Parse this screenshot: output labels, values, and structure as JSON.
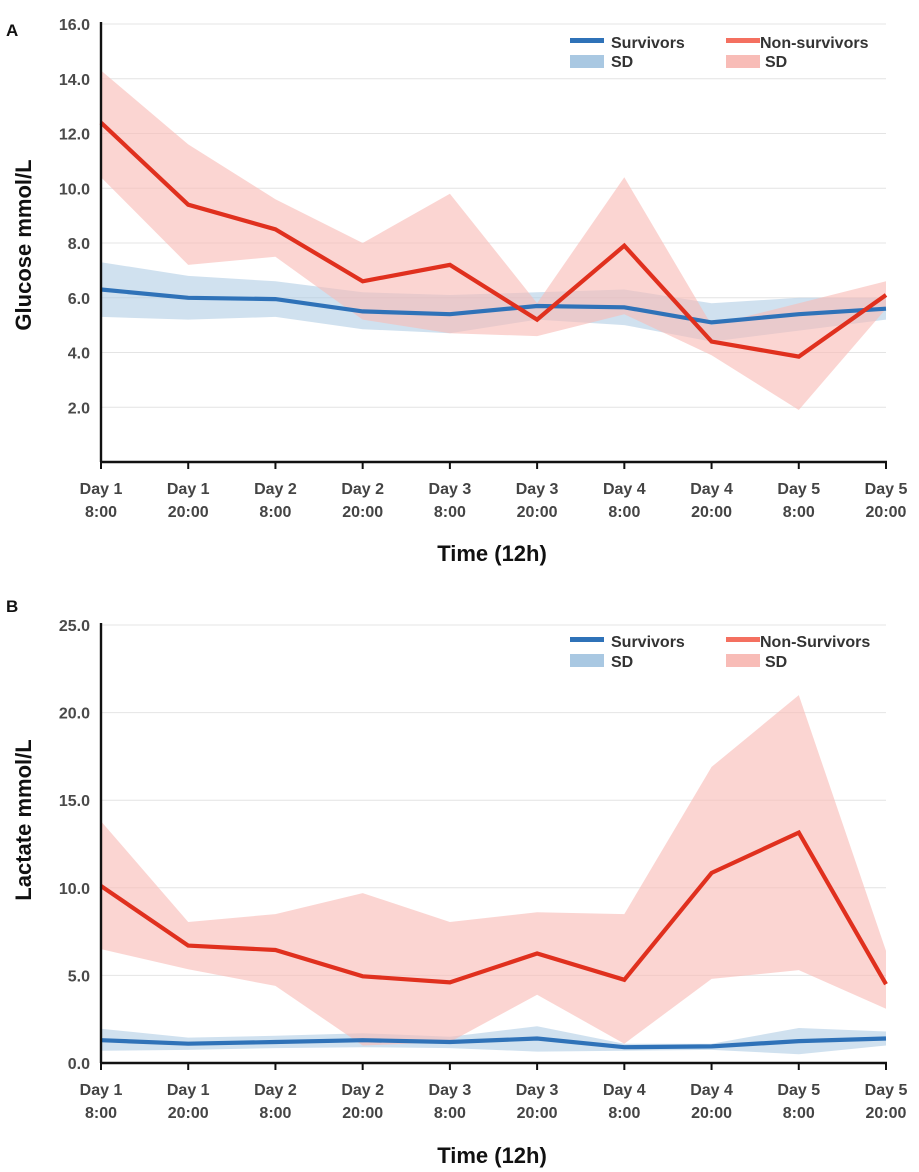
{
  "chart_data": [
    {
      "panel": "A",
      "type": "line",
      "ylabel": "Glucose mmol/L",
      "xlabel": "Time (12h)",
      "ylim": [
        0,
        16
      ],
      "yticks": [
        "2.0",
        "4.0",
        "6.0",
        "8.0",
        "10.0",
        "12.0",
        "14.0",
        "16.0"
      ],
      "ytick_values": [
        2,
        4,
        6,
        8,
        10,
        12,
        14,
        16
      ],
      "categories": [
        [
          "Day 1",
          "8:00"
        ],
        [
          "Day 1",
          "20:00"
        ],
        [
          "Day 2",
          "8:00"
        ],
        [
          "Day 2",
          "20:00"
        ],
        [
          "Day 3",
          "8:00"
        ],
        [
          "Day 3",
          "20:00"
        ],
        [
          "Day 4",
          "8:00"
        ],
        [
          "Day 4",
          "20:00"
        ],
        [
          "Day 5",
          "8:00"
        ],
        [
          "Day 5",
          "20:00"
        ]
      ],
      "grid": true,
      "legend_position": "top-right",
      "series": [
        {
          "name": "Survivors",
          "sd_label": "SD",
          "color": "#2f72b8",
          "band_color": "#a9c8e2",
          "values": [
            6.3,
            6.0,
            5.95,
            5.5,
            5.4,
            5.7,
            5.65,
            5.1,
            5.4,
            5.6
          ],
          "upper": [
            7.3,
            6.8,
            6.6,
            6.2,
            6.1,
            6.2,
            6.3,
            5.8,
            6.0,
            6.0
          ],
          "lower": [
            5.3,
            5.2,
            5.3,
            4.85,
            4.7,
            5.2,
            5.0,
            4.4,
            4.8,
            5.2
          ]
        },
        {
          "name": "Non-survivors",
          "sd_label": "SD",
          "color": "#e0301e",
          "band_color": "#f8bcb7",
          "values": [
            12.4,
            9.4,
            8.5,
            6.6,
            7.2,
            5.2,
            7.9,
            4.4,
            3.85,
            6.1
          ],
          "upper": [
            14.3,
            11.6,
            9.6,
            8.0,
            9.8,
            5.8,
            10.4,
            5.0,
            5.8,
            6.6
          ],
          "lower": [
            10.4,
            7.2,
            7.5,
            5.2,
            4.7,
            4.6,
            5.4,
            3.9,
            1.9,
            5.6
          ]
        }
      ]
    },
    {
      "panel": "B",
      "type": "line",
      "ylabel": "Lactate mmol/L",
      "xlabel": "Time (12h)",
      "ylim": [
        0,
        25
      ],
      "yticks": [
        "0.0",
        "5.0",
        "10.0",
        "15.0",
        "20.0",
        "25.0"
      ],
      "ytick_values": [
        0,
        5,
        10,
        15,
        20,
        25
      ],
      "categories": [
        [
          "Day 1",
          "8:00"
        ],
        [
          "Day 1",
          "20:00"
        ],
        [
          "Day 2",
          "8:00"
        ],
        [
          "Day 2",
          "20:00"
        ],
        [
          "Day 3",
          "8:00"
        ],
        [
          "Day 3",
          "20:00"
        ],
        [
          "Day 4",
          "8:00"
        ],
        [
          "Day 4",
          "20:00"
        ],
        [
          "Day 5",
          "8:00"
        ],
        [
          "Day 5",
          "20:00"
        ]
      ],
      "grid": true,
      "legend_position": "top-right",
      "series": [
        {
          "name": "Survivors",
          "sd_label": "SD",
          "color": "#2f72b8",
          "band_color": "#a9c8e2",
          "values": [
            1.3,
            1.1,
            1.2,
            1.3,
            1.2,
            1.4,
            0.9,
            0.95,
            1.25,
            1.4
          ],
          "upper": [
            1.95,
            1.45,
            1.55,
            1.7,
            1.5,
            2.1,
            1.1,
            1.1,
            2.0,
            1.8
          ],
          "lower": [
            0.7,
            0.75,
            0.85,
            0.9,
            0.85,
            0.65,
            0.7,
            0.75,
            0.5,
            1.0
          ]
        },
        {
          "name": "Non-Survivors",
          "sd_label": "SD",
          "color": "#e0301e",
          "band_color": "#f8bcb7",
          "values": [
            10.1,
            6.7,
            6.45,
            4.95,
            4.6,
            6.25,
            4.75,
            10.85,
            13.15,
            4.5
          ],
          "upper": [
            13.8,
            8.05,
            8.5,
            9.7,
            8.05,
            8.6,
            8.5,
            16.9,
            21.0,
            6.4
          ],
          "lower": [
            6.5,
            5.35,
            4.4,
            1.0,
            1.2,
            3.9,
            1.1,
            4.8,
            5.3,
            3.1
          ]
        }
      ]
    }
  ]
}
